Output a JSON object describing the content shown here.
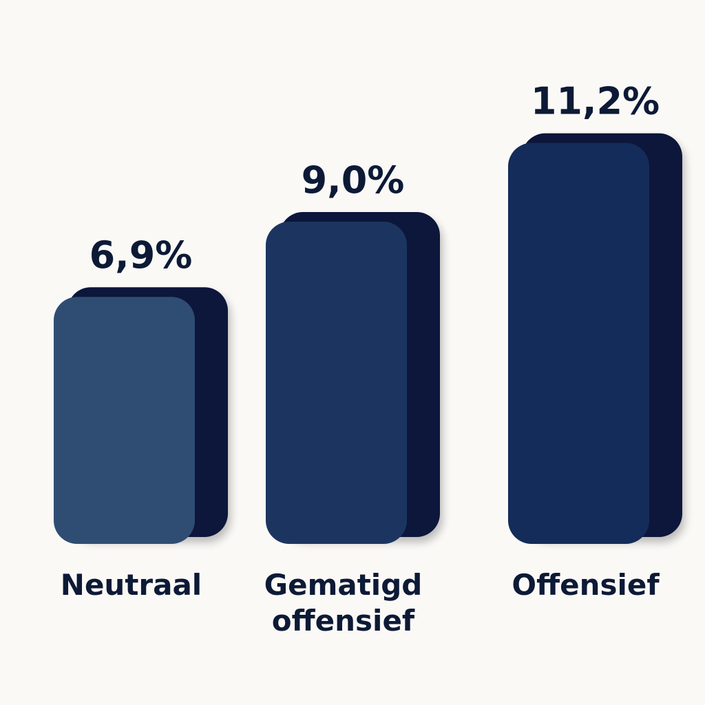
{
  "chart_data": {
    "type": "bar",
    "categories": [
      [
        "Neutraal"
      ],
      [
        "Gematigd",
        "offensief"
      ],
      [
        "Offensief"
      ]
    ],
    "values": [
      6.9,
      9.0,
      11.2
    ],
    "value_labels": [
      "6,9%",
      "9,0%",
      "11,2%"
    ],
    "bar_colors": [
      "#2f4d73",
      "#1c3560",
      "#142c59"
    ],
    "shade_color": "#07183a",
    "label_color": "#0c1a36",
    "background": "#fbf9f6",
    "grid": false,
    "legend": "none"
  }
}
